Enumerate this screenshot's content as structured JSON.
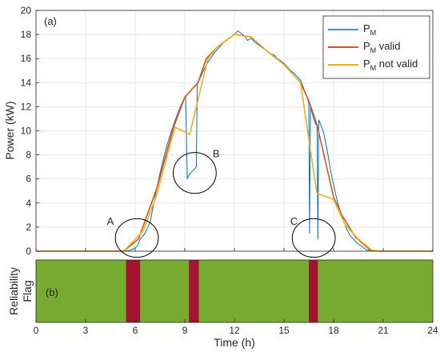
{
  "chart_data": [
    {
      "type": "line",
      "panel_label": "(a)",
      "xlabel": "",
      "ylabel": "Power (kW)",
      "xlim": [
        0,
        24
      ],
      "ylim": [
        0,
        20
      ],
      "xticks": [
        0,
        3,
        6,
        9,
        12,
        15,
        18,
        21,
        24
      ],
      "yticks": [
        0,
        2,
        4,
        6,
        8,
        10,
        12,
        14,
        16,
        18,
        20
      ],
      "grid": true,
      "legend_position": "top-right",
      "series": [
        {
          "name": "P",
          "name_sub": "M",
          "color": "#0072BD",
          "x": [
            0,
            5.3,
            5.6,
            5.9,
            6.1,
            6.15,
            6.3,
            6.6,
            6.9,
            7.1,
            7.3,
            7.5,
            7.7,
            7.9,
            8.1,
            8.3,
            8.5,
            8.7,
            8.9,
            9.05,
            9.15,
            9.2,
            9.3,
            9.5,
            9.7,
            9.75,
            9.8,
            10.0,
            10.2,
            10.4,
            10.6,
            10.8,
            11.0,
            11.2,
            11.4,
            11.6,
            11.8,
            12.0,
            12.2,
            12.4,
            12.6,
            12.8,
            13.0,
            13.2,
            13.4,
            13.6,
            13.8,
            14.0,
            14.2,
            14.4,
            14.6,
            14.8,
            15.0,
            15.2,
            15.4,
            15.6,
            15.8,
            16.0,
            16.2,
            16.4,
            16.5,
            16.55,
            16.6,
            16.7,
            16.8,
            16.9,
            17.0,
            17.05,
            17.1,
            17.2,
            17.4,
            17.6,
            17.8,
            18.0,
            18.2,
            18.4,
            18.6,
            18.8,
            19.0,
            19.2,
            19.4,
            19.6,
            19.8,
            20.0,
            20.3,
            20.6,
            21.0,
            24
          ],
          "y": [
            0,
            0,
            0.05,
            0.2,
            0.4,
            0.5,
            1.0,
            1.5,
            2.4,
            3.8,
            5.2,
            6.5,
            7.6,
            8.7,
            9.6,
            10.4,
            11.2,
            11.9,
            12.5,
            12.9,
            6.0,
            6.2,
            6.4,
            6.7,
            7.0,
            13.9,
            14.0,
            14.6,
            15.2,
            15.7,
            16.1,
            16.5,
            16.8,
            17.1,
            17.4,
            17.6,
            17.8,
            18.0,
            18.3,
            18.1,
            17.9,
            17.5,
            17.7,
            17.4,
            17.2,
            17.0,
            16.8,
            16.6,
            16.4,
            16.3,
            16.0,
            15.8,
            15.6,
            15.3,
            15.0,
            14.8,
            14.5,
            14.2,
            13.5,
            12.8,
            12.3,
            1.5,
            12.0,
            11.5,
            11.0,
            10.6,
            10.4,
            1.0,
            10.9,
            10.6,
            9.8,
            8.5,
            6.8,
            5.5,
            4.3,
            3.3,
            2.5,
            1.8,
            1.3,
            1.0,
            0.7,
            0.5,
            0.3,
            0.1,
            0.05,
            0,
            0,
            0
          ]
        },
        {
          "name": "P",
          "name_sub": "M",
          "name_suffix": " valid",
          "color": "#D95319",
          "x": [
            0,
            5.3,
            6.2,
            7.3,
            8.3,
            9.0,
            9.8,
            10.3,
            11.0,
            12.0,
            13.0,
            14.0,
            15.0,
            16.0,
            16.5,
            17.0,
            18.0,
            18.5,
            19.3,
            20.2,
            20.8,
            24
          ],
          "y": [
            0,
            0,
            1.0,
            5.2,
            10.2,
            12.8,
            14.0,
            16.0,
            17.0,
            18.0,
            17.8,
            16.6,
            15.5,
            14.0,
            12.5,
            10.5,
            4.5,
            3.0,
            1.2,
            0.1,
            0,
            0
          ]
        },
        {
          "name": "P",
          "name_sub": "M",
          "name_suffix": " not valid",
          "color": "#EDB120",
          "x": [
            0,
            5.3,
            6.5,
            7.3,
            8.4,
            9.3,
            10.4,
            11.0,
            12.0,
            13.0,
            14.0,
            15.0,
            16.0,
            16.5,
            17.0,
            18.0,
            18.7,
            19.5,
            20.3,
            20.9,
            24
          ],
          "y": [
            0,
            0,
            1.7,
            4.7,
            10.3,
            9.7,
            16.0,
            17.0,
            18.0,
            17.8,
            16.6,
            15.5,
            14.0,
            9.3,
            4.8,
            4.3,
            2.2,
            1.0,
            0.1,
            0,
            0
          ]
        }
      ],
      "annotations": [
        {
          "label": "A",
          "x": 4.5,
          "y": 2.2,
          "ellipse": {
            "cx": 6.1,
            "cy": 1.1,
            "rx": 1.0,
            "ry": 1.6
          }
        },
        {
          "label": "B",
          "x": 10.9,
          "y": 7.8,
          "ellipse": {
            "cx": 9.6,
            "cy": 6.5,
            "rx": 1.0,
            "ry": 1.7
          }
        },
        {
          "label": "C",
          "x": 15.6,
          "y": 2.2,
          "ellipse": {
            "cx": 16.8,
            "cy": 1.1,
            "rx": 1.0,
            "ry": 1.6
          }
        }
      ]
    },
    {
      "type": "heatmap",
      "panel_label": "(b)",
      "xlabel": "Time (h)",
      "ylabel": [
        "Reliability",
        "Flag"
      ],
      "xlim": [
        0,
        24
      ],
      "xticks": [
        0,
        3,
        6,
        9,
        12,
        15,
        18,
        21,
        24
      ],
      "background_color": "#77AC30",
      "flag_color": "#A2142F",
      "flag_intervals": [
        [
          5.45,
          6.3
        ],
        [
          9.25,
          9.85
        ],
        [
          16.5,
          17.05
        ]
      ]
    }
  ]
}
